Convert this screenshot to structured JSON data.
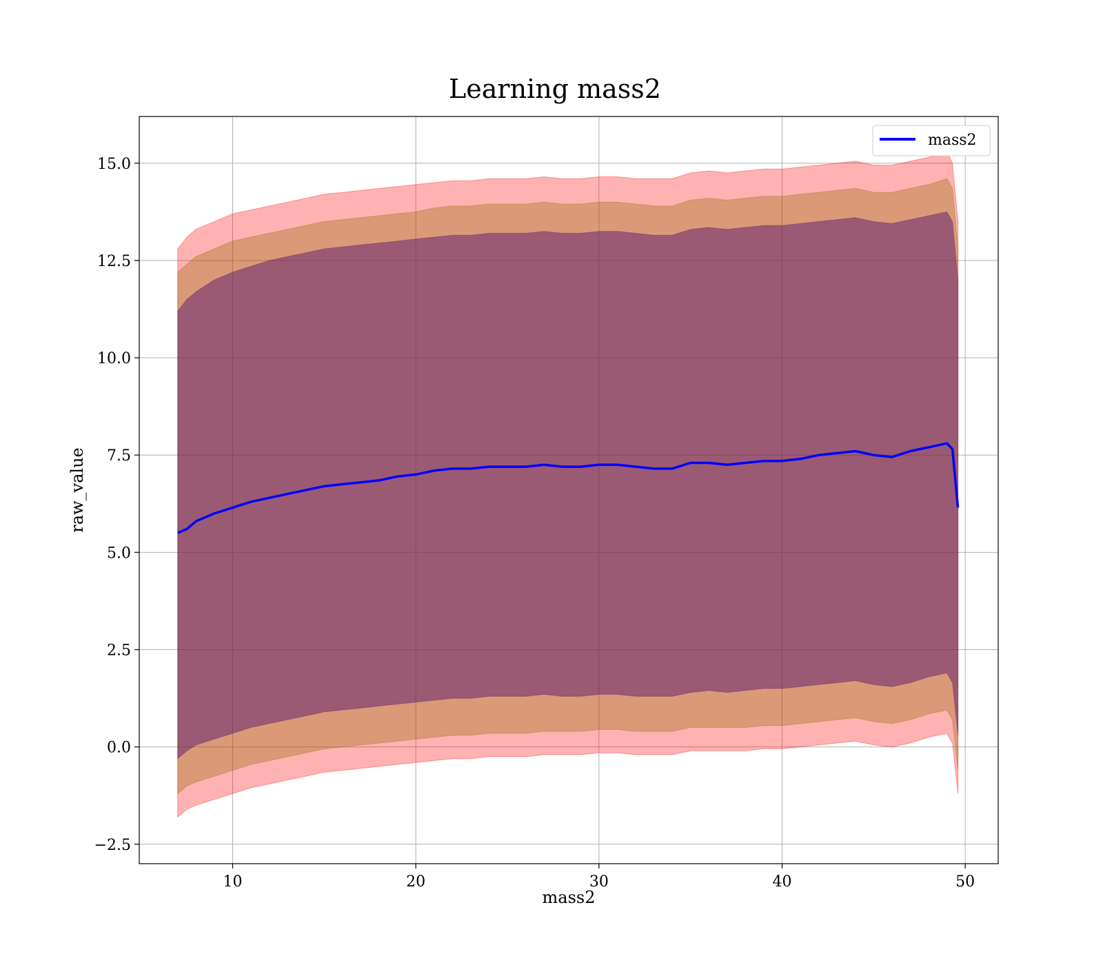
{
  "chart_data": {
    "type": "line",
    "title": "Learning mass2",
    "xlabel": "mass2",
    "ylabel": "raw_value",
    "xlim": [
      4.9,
      51.8
    ],
    "ylim": [
      -3.0,
      16.2
    ],
    "xticks": [
      10,
      20,
      30,
      40,
      50
    ],
    "yticks": [
      -2.5,
      0.0,
      2.5,
      5.0,
      7.5,
      10.0,
      12.5,
      15.0
    ],
    "ytick_labels": [
      "−2.5",
      "0.0",
      "2.5",
      "5.0",
      "7.5",
      "10.0",
      "12.5",
      "15.0"
    ],
    "grid": true,
    "legend_position": "top-right",
    "colors": {
      "line": "#0000ff",
      "band_outer": "#ff0000",
      "band_mid": "#8b6a00",
      "band_inner": "#5a1a6e"
    },
    "series": [
      {
        "name": "mass2",
        "x": [
          7.0,
          7.5,
          8.0,
          9.0,
          10.0,
          11.0,
          12.0,
          13.0,
          14.0,
          15.0,
          16.0,
          17.0,
          18.0,
          19.0,
          20.0,
          21.0,
          22.0,
          23.0,
          24.0,
          25.0,
          26.0,
          27.0,
          28.0,
          29.0,
          30.0,
          31.0,
          32.0,
          33.0,
          34.0,
          35.0,
          36.0,
          37.0,
          38.0,
          39.0,
          40.0,
          41.0,
          42.0,
          43.0,
          44.0,
          45.0,
          46.0,
          47.0,
          48.0,
          49.0,
          49.3,
          49.6
        ],
        "y": [
          5.5,
          5.6,
          5.8,
          6.0,
          6.15,
          6.3,
          6.4,
          6.5,
          6.6,
          6.7,
          6.75,
          6.8,
          6.85,
          6.95,
          7.0,
          7.1,
          7.15,
          7.15,
          7.2,
          7.2,
          7.2,
          7.25,
          7.2,
          7.2,
          7.25,
          7.25,
          7.2,
          7.15,
          7.15,
          7.3,
          7.3,
          7.25,
          7.3,
          7.35,
          7.35,
          7.4,
          7.5,
          7.55,
          7.6,
          7.5,
          7.45,
          7.6,
          7.7,
          7.8,
          7.65,
          6.15
        ],
        "band_outer_upper": [
          12.8,
          13.1,
          13.3,
          13.5,
          13.7,
          13.8,
          13.9,
          14.0,
          14.1,
          14.2,
          14.25,
          14.3,
          14.35,
          14.4,
          14.45,
          14.5,
          14.55,
          14.55,
          14.6,
          14.6,
          14.6,
          14.65,
          14.6,
          14.6,
          14.65,
          14.65,
          14.6,
          14.6,
          14.6,
          14.75,
          14.8,
          14.75,
          14.8,
          14.85,
          14.85,
          14.9,
          14.95,
          15.0,
          15.05,
          14.95,
          14.95,
          15.05,
          15.15,
          15.3,
          15.0,
          13.5
        ],
        "band_outer_lower": [
          -1.8,
          -1.6,
          -1.5,
          -1.35,
          -1.2,
          -1.05,
          -0.95,
          -0.85,
          -0.75,
          -0.65,
          -0.6,
          -0.55,
          -0.5,
          -0.45,
          -0.4,
          -0.35,
          -0.3,
          -0.3,
          -0.25,
          -0.25,
          -0.25,
          -0.2,
          -0.2,
          -0.2,
          -0.15,
          -0.15,
          -0.2,
          -0.2,
          -0.2,
          -0.1,
          -0.1,
          -0.1,
          -0.1,
          -0.05,
          -0.05,
          0.0,
          0.05,
          0.1,
          0.15,
          0.05,
          0.0,
          0.1,
          0.25,
          0.35,
          0.1,
          -1.2
        ],
        "band_mid_upper": [
          12.2,
          12.4,
          12.6,
          12.8,
          13.0,
          13.1,
          13.2,
          13.3,
          13.4,
          13.5,
          13.55,
          13.6,
          13.65,
          13.7,
          13.75,
          13.85,
          13.9,
          13.9,
          13.95,
          13.95,
          13.95,
          14.0,
          13.95,
          13.95,
          14.0,
          14.0,
          13.95,
          13.9,
          13.9,
          14.05,
          14.1,
          14.05,
          14.1,
          14.15,
          14.15,
          14.2,
          14.25,
          14.3,
          14.35,
          14.25,
          14.25,
          14.35,
          14.45,
          14.6,
          14.35,
          12.8
        ],
        "band_mid_lower": [
          -1.2,
          -1.0,
          -0.9,
          -0.75,
          -0.6,
          -0.45,
          -0.35,
          -0.25,
          -0.15,
          -0.05,
          0.0,
          0.05,
          0.1,
          0.15,
          0.2,
          0.25,
          0.3,
          0.3,
          0.35,
          0.35,
          0.35,
          0.4,
          0.4,
          0.4,
          0.45,
          0.45,
          0.4,
          0.4,
          0.4,
          0.5,
          0.5,
          0.5,
          0.5,
          0.55,
          0.55,
          0.6,
          0.65,
          0.7,
          0.75,
          0.65,
          0.6,
          0.7,
          0.85,
          0.95,
          0.7,
          -0.6
        ],
        "band_inner_upper": [
          11.2,
          11.5,
          11.7,
          12.0,
          12.2,
          12.35,
          12.5,
          12.6,
          12.7,
          12.8,
          12.85,
          12.9,
          12.95,
          13.0,
          13.05,
          13.1,
          13.15,
          13.15,
          13.2,
          13.2,
          13.2,
          13.25,
          13.2,
          13.2,
          13.25,
          13.25,
          13.2,
          13.15,
          13.15,
          13.3,
          13.35,
          13.3,
          13.35,
          13.4,
          13.4,
          13.45,
          13.5,
          13.55,
          13.6,
          13.5,
          13.45,
          13.55,
          13.65,
          13.75,
          13.5,
          12.0
        ],
        "band_inner_lower": [
          -0.3,
          -0.1,
          0.05,
          0.2,
          0.35,
          0.5,
          0.6,
          0.7,
          0.8,
          0.9,
          0.95,
          1.0,
          1.05,
          1.1,
          1.15,
          1.2,
          1.25,
          1.25,
          1.3,
          1.3,
          1.3,
          1.35,
          1.3,
          1.3,
          1.35,
          1.35,
          1.3,
          1.3,
          1.3,
          1.4,
          1.45,
          1.4,
          1.45,
          1.5,
          1.5,
          1.55,
          1.6,
          1.65,
          1.7,
          1.6,
          1.55,
          1.65,
          1.8,
          1.9,
          1.65,
          0.3
        ]
      }
    ]
  }
}
